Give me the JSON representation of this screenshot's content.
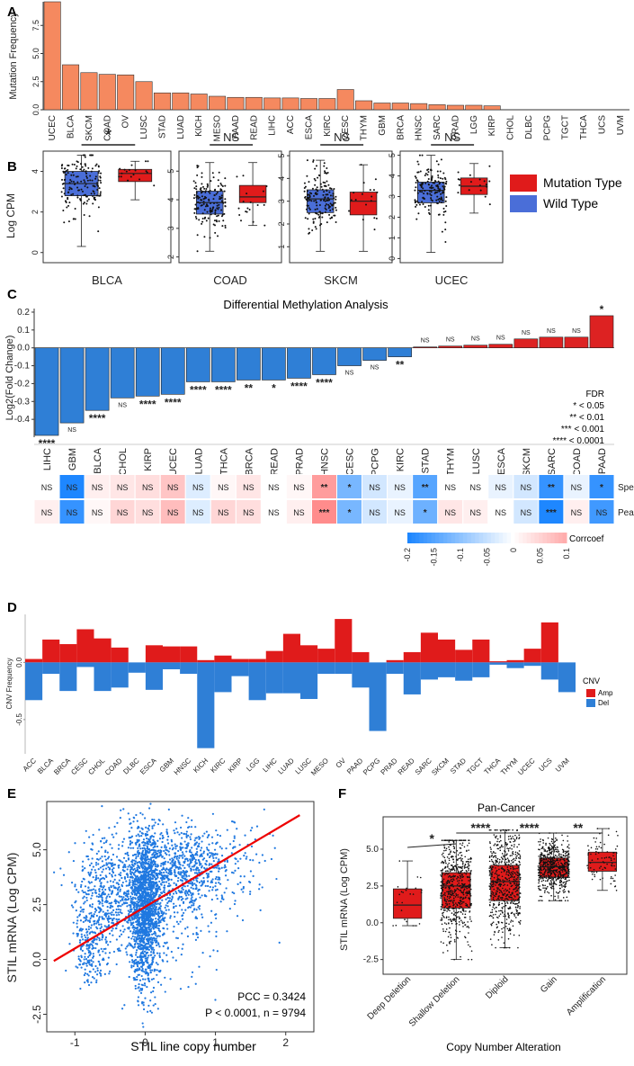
{
  "colors": {
    "orange": "#f5895f",
    "red": "#e01b1b",
    "blue": "#2f7fd6",
    "boxblue": "#4a6ed8",
    "heatRed": "#e24b4b",
    "heatBlue": "#1f86e8"
  },
  "panels": {
    "A": "A",
    "B": "B",
    "C": "C",
    "D": "D",
    "E": "E",
    "F": "F"
  },
  "chart_data": [
    {
      "id": "A",
      "type": "bar",
      "ylabel": "Mutation Frequency",
      "categories": [
        "UCEC",
        "BLCA",
        "SKCM",
        "COAD",
        "OV",
        "LUSC",
        "STAD",
        "LUAD",
        "KICH",
        "MESO",
        "PAAD",
        "READ",
        "LIHC",
        "ACC",
        "ESCA",
        "KIRC",
        "CESC",
        "THYM",
        "GBM",
        "BRCA",
        "HNSC",
        "SARC",
        "PRAD",
        "LGG",
        "KIRP",
        "CHOL",
        "DLBC",
        "PCPG",
        "TGCT",
        "THCA",
        "UCS",
        "UVM"
      ],
      "values": [
        9.6,
        4.0,
        3.3,
        3.15,
        3.1,
        2.5,
        1.5,
        1.5,
        1.4,
        1.2,
        1.1,
        1.1,
        1.05,
        1.05,
        1.0,
        1.0,
        1.8,
        0.8,
        0.6,
        0.6,
        0.55,
        0.45,
        0.4,
        0.4,
        0.35,
        0,
        0,
        0,
        0,
        0,
        0,
        0
      ],
      "yticks": [
        "0.0",
        "2.5",
        "5.0",
        "7.5"
      ],
      "ylim": [
        0,
        9.6
      ]
    },
    {
      "id": "B",
      "type": "box",
      "ylabel": "Log CPM",
      "legend": [
        "Mutation Type",
        "Wild Type"
      ],
      "groups": [
        {
          "name": "BLCA",
          "sig": "*",
          "yticks": [
            "0",
            "2",
            "4"
          ],
          "ymin": -0.5,
          "ymax": 5.0,
          "wild": {
            "min": 0.3,
            "q1": 2.8,
            "med": 3.4,
            "q3": 4.0,
            "max": 4.8
          },
          "mut": {
            "min": 2.6,
            "q1": 3.5,
            "med": 3.9,
            "q3": 4.1,
            "max": 4.5
          }
        },
        {
          "name": "COAD",
          "sig": "NS",
          "yticks": [
            "2",
            "3",
            "4",
            "5"
          ],
          "ymin": 1.8,
          "ymax": 5.7,
          "wild": {
            "min": 2.2,
            "q1": 3.5,
            "med": 3.9,
            "q3": 4.3,
            "max": 5.3
          },
          "mut": {
            "min": 3.1,
            "q1": 3.9,
            "med": 4.1,
            "q3": 4.5,
            "max": 5.3
          }
        },
        {
          "name": "SKCM",
          "sig": "NS",
          "yticks": [
            "0",
            "1",
            "2",
            "3",
            "4",
            "5"
          ],
          "ymin": 0.3,
          "ymax": 5.2,
          "wild": {
            "min": 0.8,
            "q1": 2.5,
            "med": 3.1,
            "q3": 3.5,
            "max": 4.8
          },
          "mut": {
            "min": 0.8,
            "q1": 2.4,
            "med": 3.0,
            "q3": 3.4,
            "max": 4.6
          }
        },
        {
          "name": "UCEC",
          "sig": "NS",
          "yticks": [
            "0",
            "1",
            "2",
            "3",
            "4",
            "5"
          ],
          "ymin": -0.2,
          "ymax": 5.2,
          "wild": {
            "min": 0.3,
            "q1": 2.7,
            "med": 3.3,
            "q3": 3.7,
            "max": 5.0
          },
          "mut": {
            "min": 2.2,
            "q1": 3.1,
            "med": 3.5,
            "q3": 3.9,
            "max": 4.6
          }
        }
      ]
    },
    {
      "id": "C",
      "type": "bar",
      "title": "Differential Methylation Analysis",
      "ylabel": "Log2(Fold Change)",
      "categories": [
        "LIHC",
        "GBM",
        "BLCA",
        "CHOL",
        "KIRP",
        "UCEC",
        "LUAD",
        "THCA",
        "BRCA",
        "READ",
        "PRAD",
        "HNSC",
        "CESC",
        "PCPG",
        "KIRC",
        "STAD",
        "THYM",
        "LUSC",
        "ESCA",
        "SKCM",
        "SARC",
        "COAD",
        "PAAD"
      ],
      "values": [
        -0.49,
        -0.42,
        -0.35,
        -0.28,
        -0.27,
        -0.26,
        -0.19,
        -0.19,
        -0.18,
        -0.18,
        -0.17,
        -0.15,
        -0.1,
        -0.07,
        -0.05,
        0.005,
        0.01,
        0.015,
        0.02,
        0.05,
        0.06,
        0.06,
        0.18
      ],
      "sig": [
        "****",
        "NS",
        "****",
        "NS",
        "****",
        "****",
        "****",
        "****",
        "**",
        "*",
        "****",
        "****",
        "NS",
        "NS",
        "**",
        "NS",
        "NS",
        "NS",
        "NS",
        "NS",
        "NS",
        "NS",
        "*"
      ],
      "yticks": [
        "-0.4",
        "-0.3",
        "-0.2",
        "-0.1",
        "0.0",
        "0.1",
        "0.2"
      ],
      "ylim": [
        -0.5,
        0.22
      ],
      "fdr_title": "FDR",
      "fdr_legend": [
        "* < 0.05",
        "** < 0.01",
        "*** < 0.001",
        "**** < 0.0001"
      ],
      "heatmap": {
        "rows": [
          "Spearman",
          "Pearson"
        ],
        "spearman": [
          0.0,
          -0.2,
          0.02,
          0.03,
          0.04,
          0.07,
          -0.03,
          0.01,
          0.03,
          0.0,
          0.01,
          0.12,
          -0.12,
          -0.04,
          -0.02,
          -0.15,
          0.0,
          0.0,
          -0.02,
          -0.04,
          -0.18,
          -0.02,
          -0.18
        ],
        "pearson": [
          0.02,
          -0.18,
          0.01,
          0.05,
          0.04,
          0.08,
          -0.03,
          0.05,
          0.04,
          0.0,
          0.02,
          0.14,
          -0.12,
          -0.04,
          -0.02,
          -0.13,
          0.03,
          0.02,
          0.0,
          -0.04,
          -0.2,
          0.02,
          -0.17
        ],
        "sp_labels": [
          "NS",
          "NS",
          "NS",
          "NS",
          "NS",
          "NS",
          "NS",
          "NS",
          "NS",
          "NS",
          "NS",
          "**",
          "*",
          "NS",
          "NS",
          "**",
          "NS",
          "NS",
          "NS",
          "NS",
          "**",
          "NS",
          "*"
        ],
        "pe_labels": [
          "NS",
          "NS",
          "NS",
          "NS",
          "NS",
          "NS",
          "NS",
          "NS",
          "NS",
          "NS",
          "NS",
          "***",
          "*",
          "NS",
          "NS",
          "*",
          "NS",
          "NS",
          "NS",
          "NS",
          "***",
          "NS",
          "NS"
        ],
        "legend_title": "Corrcoef",
        "legend_ticks": [
          "-0.2",
          "-0.15",
          "-0.1",
          "-0.05",
          "0",
          "0.05",
          "0.1"
        ]
      }
    },
    {
      "id": "D",
      "type": "bar",
      "ylabel": "CNV Frequency",
      "legend_title": "CNV",
      "legend": [
        "Amp",
        "Del"
      ],
      "categories": [
        "ACC",
        "BLCA",
        "BRCA",
        "CESC",
        "CHOL",
        "COAD",
        "DLBC",
        "ESCA",
        "GBM",
        "HNSC",
        "KICH",
        "KIRC",
        "KIRP",
        "LGG",
        "LIHC",
        "LUAD",
        "LUSC",
        "MESO",
        "OV",
        "PAAD",
        "PCPG",
        "PRAD",
        "READ",
        "SARC",
        "SKCM",
        "STAD",
        "TGCT",
        "THCA",
        "THYM",
        "UCEC",
        "UCS",
        "UVM"
      ],
      "amp": [
        0.03,
        0.2,
        0.16,
        0.29,
        0.21,
        0.13,
        0.0,
        0.15,
        0.14,
        0.14,
        0.02,
        0.06,
        0.03,
        0.03,
        0.1,
        0.25,
        0.15,
        0.12,
        0.38,
        0.09,
        0.0,
        0.02,
        0.09,
        0.26,
        0.2,
        0.11,
        0.2,
        0.01,
        0.02,
        0.12,
        0.35,
        0.0
      ],
      "del": [
        -0.33,
        -0.1,
        -0.25,
        -0.04,
        -0.25,
        -0.22,
        -0.09,
        -0.24,
        -0.06,
        -0.1,
        -0.75,
        -0.26,
        -0.12,
        -0.33,
        -0.27,
        -0.27,
        -0.32,
        -0.1,
        -0.1,
        -0.22,
        -0.6,
        -0.1,
        -0.28,
        -0.15,
        -0.13,
        -0.16,
        -0.13,
        -0.02,
        -0.05,
        -0.03,
        -0.15,
        -0.26
      ],
      "yticks": [
        "-0.5",
        "0.0"
      ],
      "ylim": [
        -0.8,
        0.42
      ]
    },
    {
      "id": "E",
      "type": "scatter",
      "xlabel": "STIL line copy number",
      "ylabel": "STIL mRNA (Log CPM)",
      "xticks": [
        "-1",
        "0",
        "1",
        "2"
      ],
      "yticks": [
        "-2.5",
        "0.0",
        "2.5",
        "5.0"
      ],
      "xlim": [
        -1.4,
        2.4
      ],
      "ylim": [
        -3.3,
        7.2
      ],
      "fit": {
        "slope": 1.9,
        "intercept": 2.4
      },
      "pcc": "PCC = 0.3424",
      "pval": "P < 0.0001, n = 9794"
    },
    {
      "id": "F",
      "type": "box",
      "title": "Pan-Cancer",
      "xlabel": "Copy Number Alteration",
      "ylabel": "STIL mRNA (Log CPM)",
      "categories": [
        "Deep Deletion",
        "Shallow Deletion",
        "Diploid",
        "Gain",
        "Amplification"
      ],
      "boxes": [
        {
          "min": -0.2,
          "q1": 0.3,
          "med": 1.2,
          "q3": 2.3,
          "max": 4.2
        },
        {
          "min": -2.5,
          "q1": 1.0,
          "med": 2.5,
          "q3": 3.4,
          "max": 5.6
        },
        {
          "min": -1.7,
          "q1": 1.5,
          "med": 2.8,
          "q3": 3.9,
          "max": 6.3
        },
        {
          "min": 1.5,
          "q1": 3.1,
          "med": 3.8,
          "q3": 4.4,
          "max": 6.1
        },
        {
          "min": 2.2,
          "q1": 3.5,
          "med": 4.1,
          "q3": 4.8,
          "max": 6.4
        }
      ],
      "comparisons": [
        "*",
        "****",
        "****",
        "**"
      ],
      "yticks": [
        "-2.5",
        "0.0",
        "2.5",
        "5.0"
      ],
      "ylim": [
        -3.5,
        7.2
      ]
    }
  ]
}
